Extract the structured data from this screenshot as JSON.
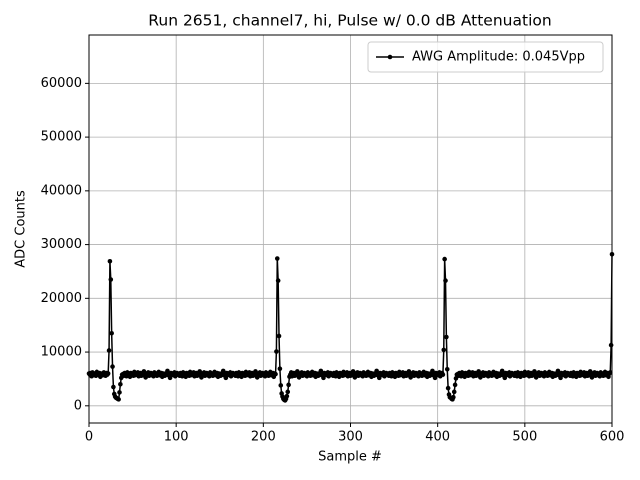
{
  "chart_data": {
    "type": "line",
    "title": "Run 2651, channel7, hi, Pulse w/ 0.0 dB Attenuation",
    "x_label": "Sample #",
    "y_label": "ADC Counts",
    "xlim": [
      0,
      600
    ],
    "ylim": [
      -3200,
      69000
    ],
    "xticks": [
      0,
      100,
      200,
      300,
      400,
      500,
      600
    ],
    "yticks": [
      0,
      10000,
      20000,
      30000,
      40000,
      50000,
      60000
    ],
    "grid": true,
    "legend": "upper right",
    "x": [
      0,
      1,
      2,
      3,
      4,
      5,
      6,
      7,
      8,
      9,
      10,
      11,
      12,
      13,
      14,
      15,
      16,
      17,
      18,
      19,
      20,
      21,
      22,
      23,
      24,
      25,
      26,
      27,
      28,
      29,
      30,
      31,
      32,
      33,
      34,
      35,
      36,
      37,
      38,
      39,
      40,
      41,
      42,
      43,
      44,
      45,
      46,
      47,
      48,
      49,
      50,
      51,
      52,
      53,
      54,
      55,
      56,
      57,
      58,
      59,
      60,
      61,
      62,
      63,
      64,
      65,
      66,
      67,
      68,
      69,
      70,
      71,
      72,
      73,
      74,
      75,
      76,
      77,
      78,
      79,
      80,
      81,
      82,
      83,
      84,
      85,
      86,
      87,
      88,
      89,
      90,
      91,
      92,
      93,
      94,
      95,
      96,
      97,
      98,
      99,
      100,
      101,
      102,
      103,
      104,
      105,
      106,
      107,
      108,
      109,
      110,
      111,
      112,
      113,
      114,
      115,
      116,
      117,
      118,
      119,
      120,
      121,
      122,
      123,
      124,
      125,
      126,
      127,
      128,
      129,
      130,
      131,
      132,
      133,
      134,
      135,
      136,
      137,
      138,
      139,
      140,
      141,
      142,
      143,
      144,
      145,
      146,
      147,
      148,
      149,
      150,
      151,
      152,
      153,
      154,
      155,
      156,
      157,
      158,
      159,
      160,
      161,
      162,
      163,
      164,
      165,
      166,
      167,
      168,
      169,
      170,
      171,
      172,
      173,
      174,
      175,
      176,
      177,
      178,
      179,
      180,
      181,
      182,
      183,
      184,
      185,
      186,
      187,
      188,
      189,
      190,
      191,
      192,
      193,
      194,
      195,
      196,
      197,
      198,
      199,
      200,
      201,
      202,
      203,
      204,
      205,
      206,
      207,
      208,
      209,
      210,
      211,
      212,
      213,
      214,
      215,
      216,
      217,
      218,
      219,
      220,
      221,
      222,
      223,
      224,
      225,
      226,
      227,
      228,
      229,
      230,
      231,
      232,
      233,
      234,
      235,
      236,
      237,
      238,
      239,
      240,
      241,
      242,
      243,
      244,
      245,
      246,
      247,
      248,
      249,
      250,
      251,
      252,
      253,
      254,
      255,
      256,
      257,
      258,
      259,
      260,
      261,
      262,
      263,
      264,
      265,
      266,
      267,
      268,
      269,
      270,
      271,
      272,
      273,
      274,
      275,
      276,
      277,
      278,
      279,
      280,
      281,
      282,
      283,
      284,
      285,
      286,
      287,
      288,
      289,
      290,
      291,
      292,
      293,
      294,
      295,
      296,
      297,
      298,
      299,
      300,
      301,
      302,
      303,
      304,
      305,
      306,
      307,
      308,
      309,
      310,
      311,
      312,
      313,
      314,
      315,
      316,
      317,
      318,
      319,
      320,
      321,
      322,
      323,
      324,
      325,
      326,
      327,
      328,
      329,
      330,
      331,
      332,
      333,
      334,
      335,
      336,
      337,
      338,
      339,
      340,
      341,
      342,
      343,
      344,
      345,
      346,
      347,
      348,
      349,
      350,
      351,
      352,
      353,
      354,
      355,
      356,
      357,
      358,
      359,
      360,
      361,
      362,
      363,
      364,
      365,
      366,
      367,
      368,
      369,
      370,
      371,
      372,
      373,
      374,
      375,
      376,
      377,
      378,
      379,
      380,
      381,
      382,
      383,
      384,
      385,
      386,
      387,
      388,
      389,
      390,
      391,
      392,
      393,
      394,
      395,
      396,
      397,
      398,
      399,
      400,
      401,
      402,
      403,
      404,
      405,
      406,
      407,
      408,
      409,
      410,
      411,
      412,
      413,
      414,
      415,
      416,
      417,
      418,
      419,
      420,
      421,
      422,
      423,
      424,
      425,
      426,
      427,
      428,
      429,
      430,
      431,
      432,
      433,
      434,
      435,
      436,
      437,
      438,
      439,
      440,
      441,
      442,
      443,
      444,
      445,
      446,
      447,
      448,
      449,
      450,
      451,
      452,
      453,
      454,
      455,
      456,
      457,
      458,
      459,
      460,
      461,
      462,
      463,
      464,
      465,
      466,
      467,
      468,
      469,
      470,
      471,
      472,
      473,
      474,
      475,
      476,
      477,
      478,
      479,
      480,
      481,
      482,
      483,
      484,
      485,
      486,
      487,
      488,
      489,
      490,
      491,
      492,
      493,
      494,
      495,
      496,
      497,
      498,
      499,
      500,
      501,
      502,
      503,
      504,
      505,
      506,
      507,
      508,
      509,
      510,
      511,
      512,
      513,
      514,
      515,
      516,
      517,
      518,
      519,
      520,
      521,
      522,
      523,
      524,
      525,
      526,
      527,
      528,
      529,
      530,
      531,
      532,
      533,
      534,
      535,
      536,
      537,
      538,
      539,
      540,
      541,
      542,
      543,
      544,
      545,
      546,
      547,
      548,
      549,
      550,
      551,
      552,
      553,
      554,
      555,
      556,
      557,
      558,
      559,
      560,
      561,
      562,
      563,
      564,
      565,
      566,
      567,
      568,
      569,
      570,
      571,
      572,
      573,
      574,
      575,
      576,
      577,
      578,
      579,
      580,
      581,
      582,
      583,
      584,
      585,
      586,
      587,
      588,
      589,
      590,
      591,
      592,
      593,
      594,
      595,
      596,
      597,
      598,
      599,
      600
    ],
    "series": [
      {
        "name": "AWG Amplitude: 0.045Vpp",
        "color": "#000000",
        "values": [
          6000,
          5800,
          6100,
          5500,
          6200,
          5900,
          5700,
          6000,
          5600,
          6300,
          5800,
          5900,
          6100,
          5400,
          5800,
          6000,
          5700,
          6200,
          5900,
          5600,
          6100,
          5800,
          6000,
          10300,
          26900,
          23500,
          13500,
          7300,
          3500,
          2200,
          1700,
          1500,
          1400,
          1300,
          1200,
          2500,
          4000,
          5200,
          5800,
          5900,
          5600,
          6100,
          5800,
          5500,
          6200,
          5700,
          6000,
          5400,
          6100,
          5800,
          5900,
          5600,
          6300,
          5700,
          6000,
          5800,
          6200,
          5500,
          5900,
          6100,
          5600,
          6000,
          5700,
          6400,
          5800,
          5300,
          6000,
          5900,
          6200,
          5600,
          5800,
          6100,
          5700,
          5900,
          5500,
          6200,
          5800,
          6000,
          5600,
          5900,
          6300,
          5700,
          5800,
          6100,
          5400,
          6000,
          5900,
          5600,
          6000,
          5800,
          6500,
          5700,
          5900,
          5200,
          6100,
          5800,
          6000,
          5700,
          6200,
          5500,
          5900,
          6100,
          5800,
          5900,
          5600,
          6100,
          5800,
          5500,
          6200,
          5700,
          6000,
          5400,
          6100,
          5800,
          5900,
          5600,
          6300,
          5700,
          6000,
          5800,
          6200,
          5500,
          5900,
          6100,
          5600,
          6000,
          5700,
          6400,
          5800,
          5300,
          6000,
          5900,
          6200,
          5600,
          5800,
          6100,
          5700,
          5900,
          5500,
          6200,
          5800,
          6000,
          5600,
          5900,
          6300,
          5700,
          5800,
          6100,
          5400,
          6000,
          5900,
          5600,
          6000,
          5800,
          6500,
          5700,
          5900,
          5200,
          6100,
          5800,
          6000,
          5700,
          6200,
          5500,
          5900,
          6100,
          5800,
          5900,
          5600,
          6100,
          5800,
          5500,
          6200,
          5700,
          6000,
          5400,
          6100,
          5800,
          5900,
          5600,
          6300,
          5700,
          6000,
          5800,
          6200,
          5500,
          5900,
          6100,
          5600,
          6000,
          5700,
          6400,
          5800,
          5300,
          6000,
          5900,
          6200,
          5600,
          5800,
          6100,
          5700,
          5900,
          5500,
          6200,
          5800,
          6000,
          5600,
          5900,
          6300,
          5700,
          5800,
          6100,
          5400,
          6000,
          5900,
          10100,
          27400,
          23300,
          13000,
          6900,
          3800,
          2300,
          1700,
          1300,
          1100,
          1000,
          1300,
          1800,
          2600,
          3900,
          5400,
          5800,
          6200,
          5500,
          5900,
          6100,
          5600,
          6000,
          5700,
          6400,
          5800,
          5300,
          6000,
          5900,
          6200,
          5600,
          5800,
          6100,
          5700,
          5900,
          5500,
          6200,
          5800,
          6000,
          5600,
          5900,
          6300,
          5700,
          5800,
          6100,
          5400,
          6000,
          5900,
          5600,
          6000,
          5800,
          6500,
          5700,
          5900,
          5200,
          6100,
          5800,
          6000,
          5700,
          6200,
          5500,
          5900,
          6100,
          5800,
          5900,
          5600,
          6100,
          5800,
          5500,
          6200,
          5700,
          6000,
          5400,
          6100,
          5800,
          5900,
          5600,
          6300,
          5700,
          6000,
          5800,
          6200,
          5500,
          5900,
          6100,
          5600,
          6000,
          5700,
          6400,
          5800,
          5300,
          6000,
          5900,
          6200,
          5600,
          5800,
          6100,
          5700,
          5900,
          5500,
          6200,
          5800,
          6000,
          5600,
          5900,
          6300,
          5700,
          5800,
          6100,
          5400,
          6000,
          5900,
          5600,
          6000,
          5800,
          6500,
          5700,
          5900,
          5200,
          6100,
          5800,
          6000,
          5700,
          6200,
          5500,
          5900,
          6100,
          5800,
          5900,
          5600,
          6100,
          5800,
          5500,
          6200,
          5700,
          6000,
          5400,
          6100,
          5800,
          5900,
          5600,
          6300,
          5700,
          6000,
          5800,
          6200,
          5500,
          5900,
          6100,
          5600,
          6000,
          5700,
          6400,
          5800,
          5300,
          6000,
          5900,
          6200,
          5600,
          5800,
          6100,
          5700,
          5900,
          5500,
          6200,
          5800,
          6000,
          5600,
          5900,
          6300,
          5700,
          5800,
          6100,
          5400,
          6000,
          5900,
          5600,
          6000,
          5800,
          6500,
          5700,
          5900,
          5200,
          6100,
          5800,
          6000,
          5700,
          6200,
          5500,
          5900,
          6100,
          5800,
          10400,
          27300,
          23300,
          12800,
          6800,
          3300,
          2100,
          1600,
          1500,
          1300,
          1200,
          1600,
          2600,
          3900,
          5100,
          5800,
          5900,
          5600,
          6100,
          5800,
          5500,
          6200,
          5700,
          6000,
          5400,
          6100,
          5800,
          5900,
          5600,
          6300,
          5700,
          6000,
          5800,
          6200,
          5500,
          5900,
          6100,
          5600,
          6000,
          5700,
          6400,
          5800,
          5300,
          6000,
          5900,
          6200,
          5600,
          5800,
          6100,
          5700,
          5900,
          5500,
          6200,
          5800,
          6000,
          5600,
          5900,
          6300,
          5700,
          5800,
          6100,
          5400,
          6000,
          5900,
          5600,
          6000,
          5800,
          6500,
          5700,
          5900,
          5200,
          6100,
          5800,
          6000,
          5700,
          6200,
          5500,
          5900,
          6100,
          5800,
          5900,
          5600,
          6100,
          5800,
          5500,
          6200,
          5700,
          6000,
          5400,
          6100,
          5800,
          5900,
          5600,
          6300,
          5700,
          6000,
          5800,
          6200,
          5500,
          5900,
          6100,
          5600,
          6000,
          5700,
          6400,
          5800,
          5300,
          6000,
          5900,
          6200,
          5600,
          5800,
          6100,
          5700,
          5900,
          5500,
          6200,
          5800,
          6000,
          5600,
          5900,
          6300,
          5700,
          5800,
          6100,
          5400,
          6000,
          5900,
          5600,
          6000,
          5800,
          6500,
          5700,
          5900,
          5200,
          6100,
          5800,
          6000,
          5700,
          6200,
          5500,
          5900,
          6100,
          5800,
          5900,
          5600,
          6100,
          5800,
          5500,
          6200,
          5700,
          6000,
          5400,
          6100,
          5800,
          5900,
          5600,
          6300,
          5700,
          6000,
          5800,
          6200,
          5500,
          5900,
          6100,
          5600,
          6000,
          5700,
          6400,
          5800,
          5300,
          6000,
          5900,
          6200,
          5600,
          5800,
          6100,
          5700,
          5900,
          5500,
          6200,
          5800,
          6000,
          5600,
          5900,
          6300,
          5700,
          5800,
          6100,
          5400,
          6000,
          6200,
          11300,
          28200
        ]
      }
    ]
  }
}
